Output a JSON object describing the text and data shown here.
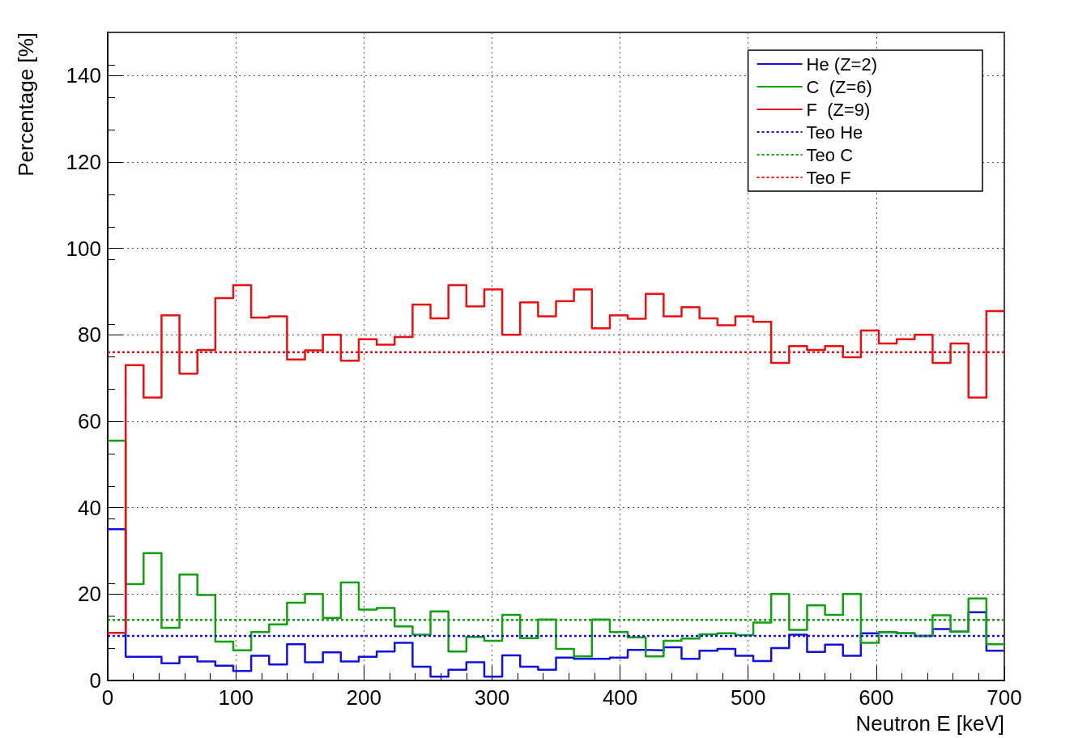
{
  "chart_data": {
    "type": "histogram",
    "xlabel": "Neutron E [keV]",
    "ylabel": "Percentage [%]",
    "bins": [
      0,
      14,
      28,
      42,
      56,
      70,
      84,
      98,
      112,
      126,
      140,
      154,
      168,
      182,
      196,
      210,
      224,
      238,
      252,
      266,
      280,
      294,
      308,
      322,
      336,
      350,
      364,
      378,
      392,
      406,
      420,
      434,
      448,
      462,
      476,
      490,
      504,
      518,
      532,
      546,
      560,
      574,
      588,
      602,
      616,
      630,
      644,
      658,
      672,
      686,
      700
    ],
    "series": [
      {
        "name": "He (Z=2)",
        "color": "#1010e0",
        "values": [
          35,
          5.5,
          5.5,
          4,
          5.5,
          4.4,
          3.4,
          2.2,
          5.7,
          3.7,
          8.4,
          4.2,
          6.5,
          4.4,
          5.5,
          6.7,
          8.7,
          3.2,
          0.9,
          2.5,
          4.2,
          0.9,
          5.8,
          3.2,
          2.5,
          5.3,
          5,
          5,
          5.3,
          7.1,
          7,
          7.7,
          5,
          6.9,
          7.3,
          5.7,
          4.5,
          7.5,
          10.6,
          6.6,
          8.3,
          5.7,
          10.9,
          11.2,
          10.9,
          10.3,
          11.9,
          11.3,
          15.8,
          6.9
        ]
      },
      {
        "name": "C  (Z=6)",
        "color": "#10a010",
        "values": [
          55.5,
          22.3,
          29.5,
          12.2,
          24.5,
          19.8,
          9,
          7,
          11.2,
          13,
          18,
          20,
          14.5,
          22.7,
          16.4,
          16.8,
          12.5,
          10.6,
          16,
          6.7,
          10.1,
          9.2,
          15.2,
          9.8,
          14.1,
          7.3,
          5.6,
          14.1,
          11.2,
          10,
          5.6,
          9.2,
          9.7,
          10.7,
          10.9,
          10.5,
          13.4,
          20,
          11.7,
          17.4,
          15.2,
          20,
          8.7,
          11.2,
          10.9,
          10.3,
          15.1,
          11.3,
          19,
          8.4
        ]
      },
      {
        "name": "F  (Z=9)",
        "color": "#e81010",
        "values": [
          11,
          73,
          65.5,
          84.5,
          71,
          76.5,
          88.5,
          91.5,
          84,
          84.3,
          74.3,
          76.4,
          80,
          74,
          79,
          77.7,
          79.5,
          87,
          83.8,
          91.5,
          86.6,
          90.5,
          80,
          87.5,
          84.3,
          87.8,
          90.5,
          81.5,
          84.5,
          83.7,
          89.5,
          84.3,
          86.4,
          83.8,
          82.2,
          84.3,
          83,
          73.5,
          77.4,
          76.5,
          77.4,
          74.8,
          81,
          78,
          79,
          80,
          73.5,
          78,
          65.5,
          85.5
        ]
      }
    ],
    "ref_lines": [
      {
        "axis": "y",
        "value": 10.3,
        "label": "Teo He",
        "color": "#1010e0",
        "line_style": "dotted"
      },
      {
        "axis": "y",
        "value": 14,
        "label": "Teo C",
        "color": "#10a010",
        "line_style": "dotted"
      },
      {
        "axis": "y",
        "value": 76,
        "label": "Teo F",
        "color": "#e81010",
        "line_style": "dotted"
      }
    ],
    "xlim": [
      0,
      700
    ],
    "xticks": [
      0,
      100,
      200,
      300,
      400,
      500,
      600,
      700
    ],
    "ylim": [
      0,
      150
    ],
    "yticks": [
      0,
      20,
      40,
      60,
      80,
      100,
      120,
      140
    ],
    "grid": true,
    "legend": "top right",
    "marker": "none"
  }
}
